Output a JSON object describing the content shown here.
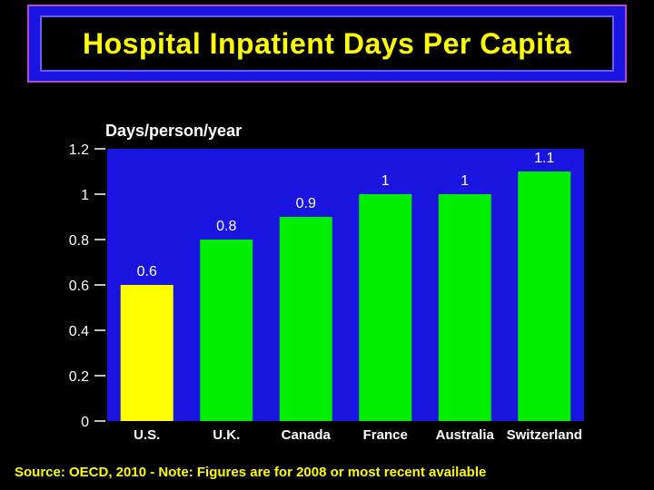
{
  "title": "Hospital Inpatient Days Per Capita",
  "source": "Source: OECD, 2010 - Note: Figures are for 2008 or most recent available",
  "colors": {
    "background": "#000000",
    "plot_background": "#1a14e0",
    "title_text": "#ffff00",
    "highlight_bar": "#ffff00",
    "bar": "#00ee00"
  },
  "chart_data": {
    "type": "bar",
    "title": "Hospital Inpatient Days Per Capita",
    "ylabel": "Days/person/year",
    "xlabel": "",
    "categories": [
      "U.S.",
      "U.K.",
      "Canada",
      "France",
      "Australia",
      "Switzerland"
    ],
    "values": [
      0.6,
      0.8,
      0.9,
      1,
      1,
      1.1
    ],
    "value_labels": [
      "0.6",
      "0.8",
      "0.9",
      "1",
      "1",
      "1.1"
    ],
    "highlight": [
      "U.S."
    ],
    "ylim": [
      0,
      1.2
    ],
    "yticks": [
      0,
      0.2,
      0.4,
      0.6,
      0.8,
      1,
      1.2
    ],
    "ytick_labels": [
      "0",
      "0.2",
      "0.4",
      "0.6",
      "0.8",
      "1",
      "1.2"
    ],
    "grid": false,
    "legend": "none"
  }
}
